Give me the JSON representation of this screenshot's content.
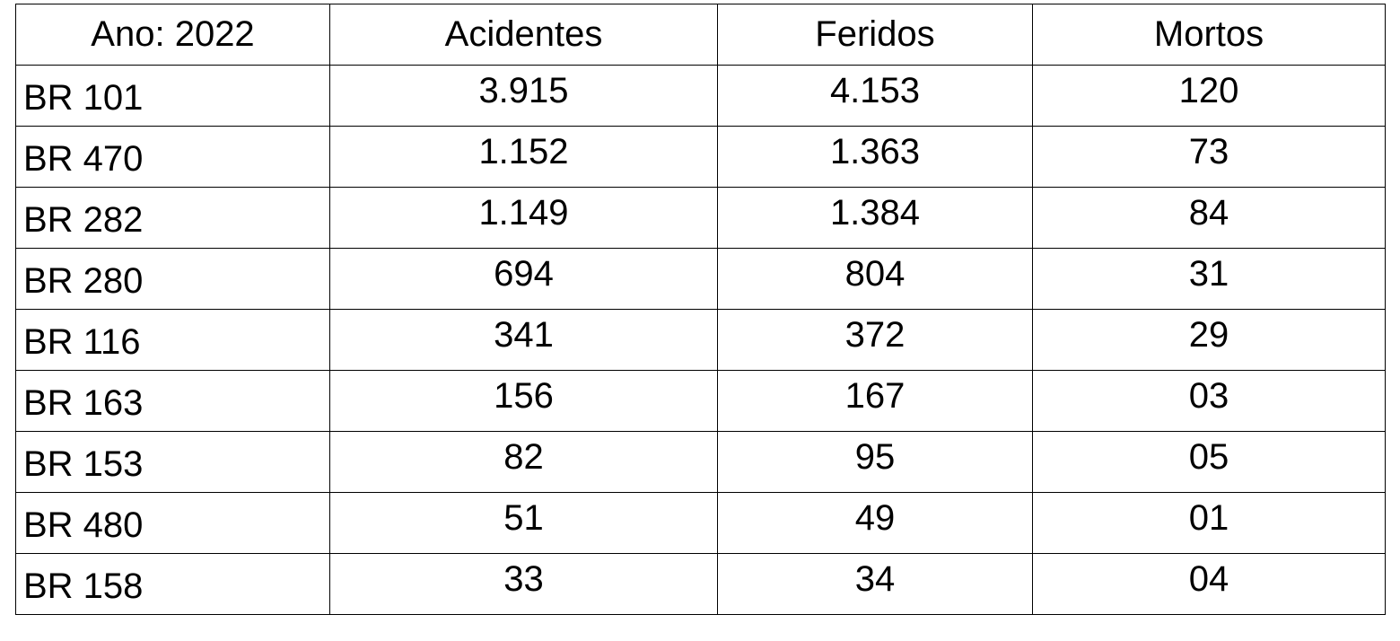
{
  "table": {
    "header": [
      "Ano: 2022",
      "Acidentes",
      "Feridos",
      "Mortos"
    ],
    "rows": [
      [
        "BR 101",
        "3.915",
        "4.153",
        "120"
      ],
      [
        "BR 470",
        "1.152",
        "1.363",
        "73"
      ],
      [
        "BR 282",
        "1.149",
        "1.384",
        "84"
      ],
      [
        "BR 280",
        "694",
        "804",
        "31"
      ],
      [
        "BR 116",
        "341",
        "372",
        "29"
      ],
      [
        "BR 163",
        "156",
        "167",
        "03"
      ],
      [
        "BR 153",
        "82",
        "95",
        "05"
      ],
      [
        "BR 480",
        "51",
        "49",
        "01"
      ],
      [
        "BR 158",
        "33",
        "34",
        "04"
      ]
    ]
  }
}
